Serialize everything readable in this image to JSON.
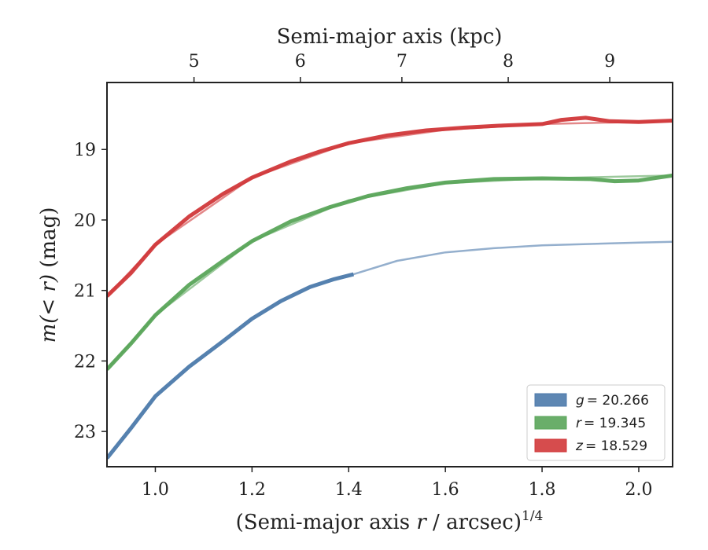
{
  "chart_data": {
    "type": "line",
    "xlabel_prefix": "(Semi-major axis ",
    "xlabel_var": "r",
    "xlabel_suffix": " / arcsec)",
    "xlabel_sup": "1/4",
    "ylabel_math": "m(< r)",
    "ylabel_unit": " (mag)",
    "top_xlabel": "Semi-major axis (kpc)",
    "xlim": [
      0.9,
      2.07
    ],
    "ylim": [
      23.5,
      18.05
    ],
    "y_inverted": true,
    "xticks": [
      1.0,
      1.2,
      1.4,
      1.6,
      1.8,
      2.0
    ],
    "xtick_labels": [
      "1.0",
      "1.2",
      "1.4",
      "1.6",
      "1.8",
      "2.0"
    ],
    "yticks": [
      19,
      20,
      21,
      22,
      23
    ],
    "ytick_labels": [
      "19",
      "20",
      "21",
      "22",
      "23"
    ],
    "top_ticks": [
      {
        "label": "5",
        "x": 1.08
      },
      {
        "label": "6",
        "x": 1.3
      },
      {
        "label": "7",
        "x": 1.51
      },
      {
        "label": "8",
        "x": 1.73
      },
      {
        "label": "9",
        "x": 1.94
      }
    ],
    "legend_position": "bottom-right",
    "series": [
      {
        "name": "g = 20.266",
        "legend_var": "g",
        "legend_value": "= 20.266",
        "color": "#4c7aab",
        "data_x": [
          0.9,
          0.95,
          1.0,
          1.07,
          1.14,
          1.2,
          1.26,
          1.32,
          1.37,
          1.41
        ],
        "data_y": [
          23.38,
          22.95,
          22.5,
          22.08,
          21.72,
          21.4,
          21.15,
          20.95,
          20.84,
          20.77
        ],
        "model_x": [
          1.41,
          1.5,
          1.6,
          1.7,
          1.8,
          1.9,
          2.0,
          2.07
        ],
        "model_y": [
          20.77,
          20.58,
          20.46,
          20.4,
          20.36,
          20.34,
          20.32,
          20.31
        ]
      },
      {
        "name": "r = 19.345",
        "legend_var": "r",
        "legend_value": "= 19.345",
        "color": "#5aa55a",
        "data_x": [
          0.9,
          0.95,
          1.0,
          1.07,
          1.14,
          1.2,
          1.28,
          1.36,
          1.44,
          1.52,
          1.6,
          1.7,
          1.8,
          1.9,
          1.95,
          2.0,
          2.07
        ],
        "data_y": [
          22.12,
          21.75,
          21.35,
          20.92,
          20.58,
          20.3,
          20.02,
          19.82,
          19.66,
          19.55,
          19.47,
          19.42,
          19.41,
          19.42,
          19.45,
          19.44,
          19.37
        ],
        "model_x": [
          0.9,
          1.0,
          1.2,
          1.4,
          1.6,
          1.8,
          2.0,
          2.07
        ],
        "model_y": [
          22.12,
          21.35,
          20.3,
          19.72,
          19.48,
          19.41,
          19.38,
          19.37
        ]
      },
      {
        "name": "z = 18.529",
        "legend_var": "z",
        "legend_value": "= 18.529",
        "color": "#d1383a",
        "data_x": [
          0.9,
          0.95,
          1.0,
          1.07,
          1.14,
          1.2,
          1.28,
          1.34,
          1.4,
          1.48,
          1.56,
          1.64,
          1.72,
          1.8,
          1.84,
          1.89,
          1.94,
          2.0,
          2.07
        ],
        "data_y": [
          21.08,
          20.75,
          20.35,
          19.95,
          19.63,
          19.4,
          19.17,
          19.03,
          18.91,
          18.8,
          18.73,
          18.69,
          18.66,
          18.64,
          18.58,
          18.55,
          18.6,
          18.61,
          18.59
        ],
        "model_x": [
          0.9,
          1.0,
          1.2,
          1.4,
          1.6,
          1.8,
          2.0,
          2.07
        ],
        "model_y": [
          21.08,
          20.35,
          19.4,
          18.91,
          18.72,
          18.64,
          18.61,
          18.6
        ]
      }
    ]
  }
}
